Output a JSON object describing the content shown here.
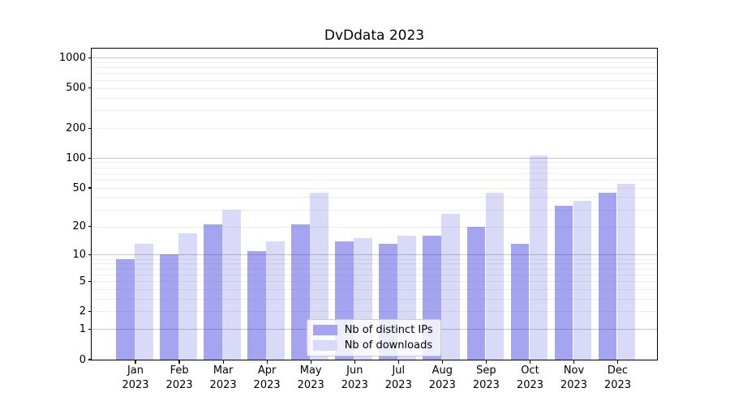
{
  "chart_data": {
    "type": "bar",
    "title": "DvDdata 2023",
    "categories": [
      "Jan 2023",
      "Feb 2023",
      "Mar 2023",
      "Apr 2023",
      "May 2023",
      "Jun 2023",
      "Jul 2023",
      "Aug 2023",
      "Sep 2023",
      "Oct 2023",
      "Nov 2023",
      "Dec 2023"
    ],
    "series": [
      {
        "name": "Nb of distinct IPs",
        "color": "#a4a4f1",
        "values": [
          9,
          10,
          21,
          11,
          21,
          14,
          13,
          16,
          20,
          13,
          33,
          44
        ]
      },
      {
        "name": "Nb of downloads",
        "color": "#d9d9f8",
        "values": [
          13,
          17,
          30,
          14,
          44,
          15,
          16,
          27,
          44,
          105,
          37,
          55
        ]
      }
    ],
    "xlabel": "",
    "ylabel": "",
    "yscale": "log1p",
    "yticks": [
      0,
      1,
      2,
      5,
      10,
      20,
      50,
      100,
      200,
      500,
      1000
    ],
    "ylim": [
      0,
      1240
    ],
    "grid": "horizontal major+minor",
    "legend_position": "lower center"
  }
}
